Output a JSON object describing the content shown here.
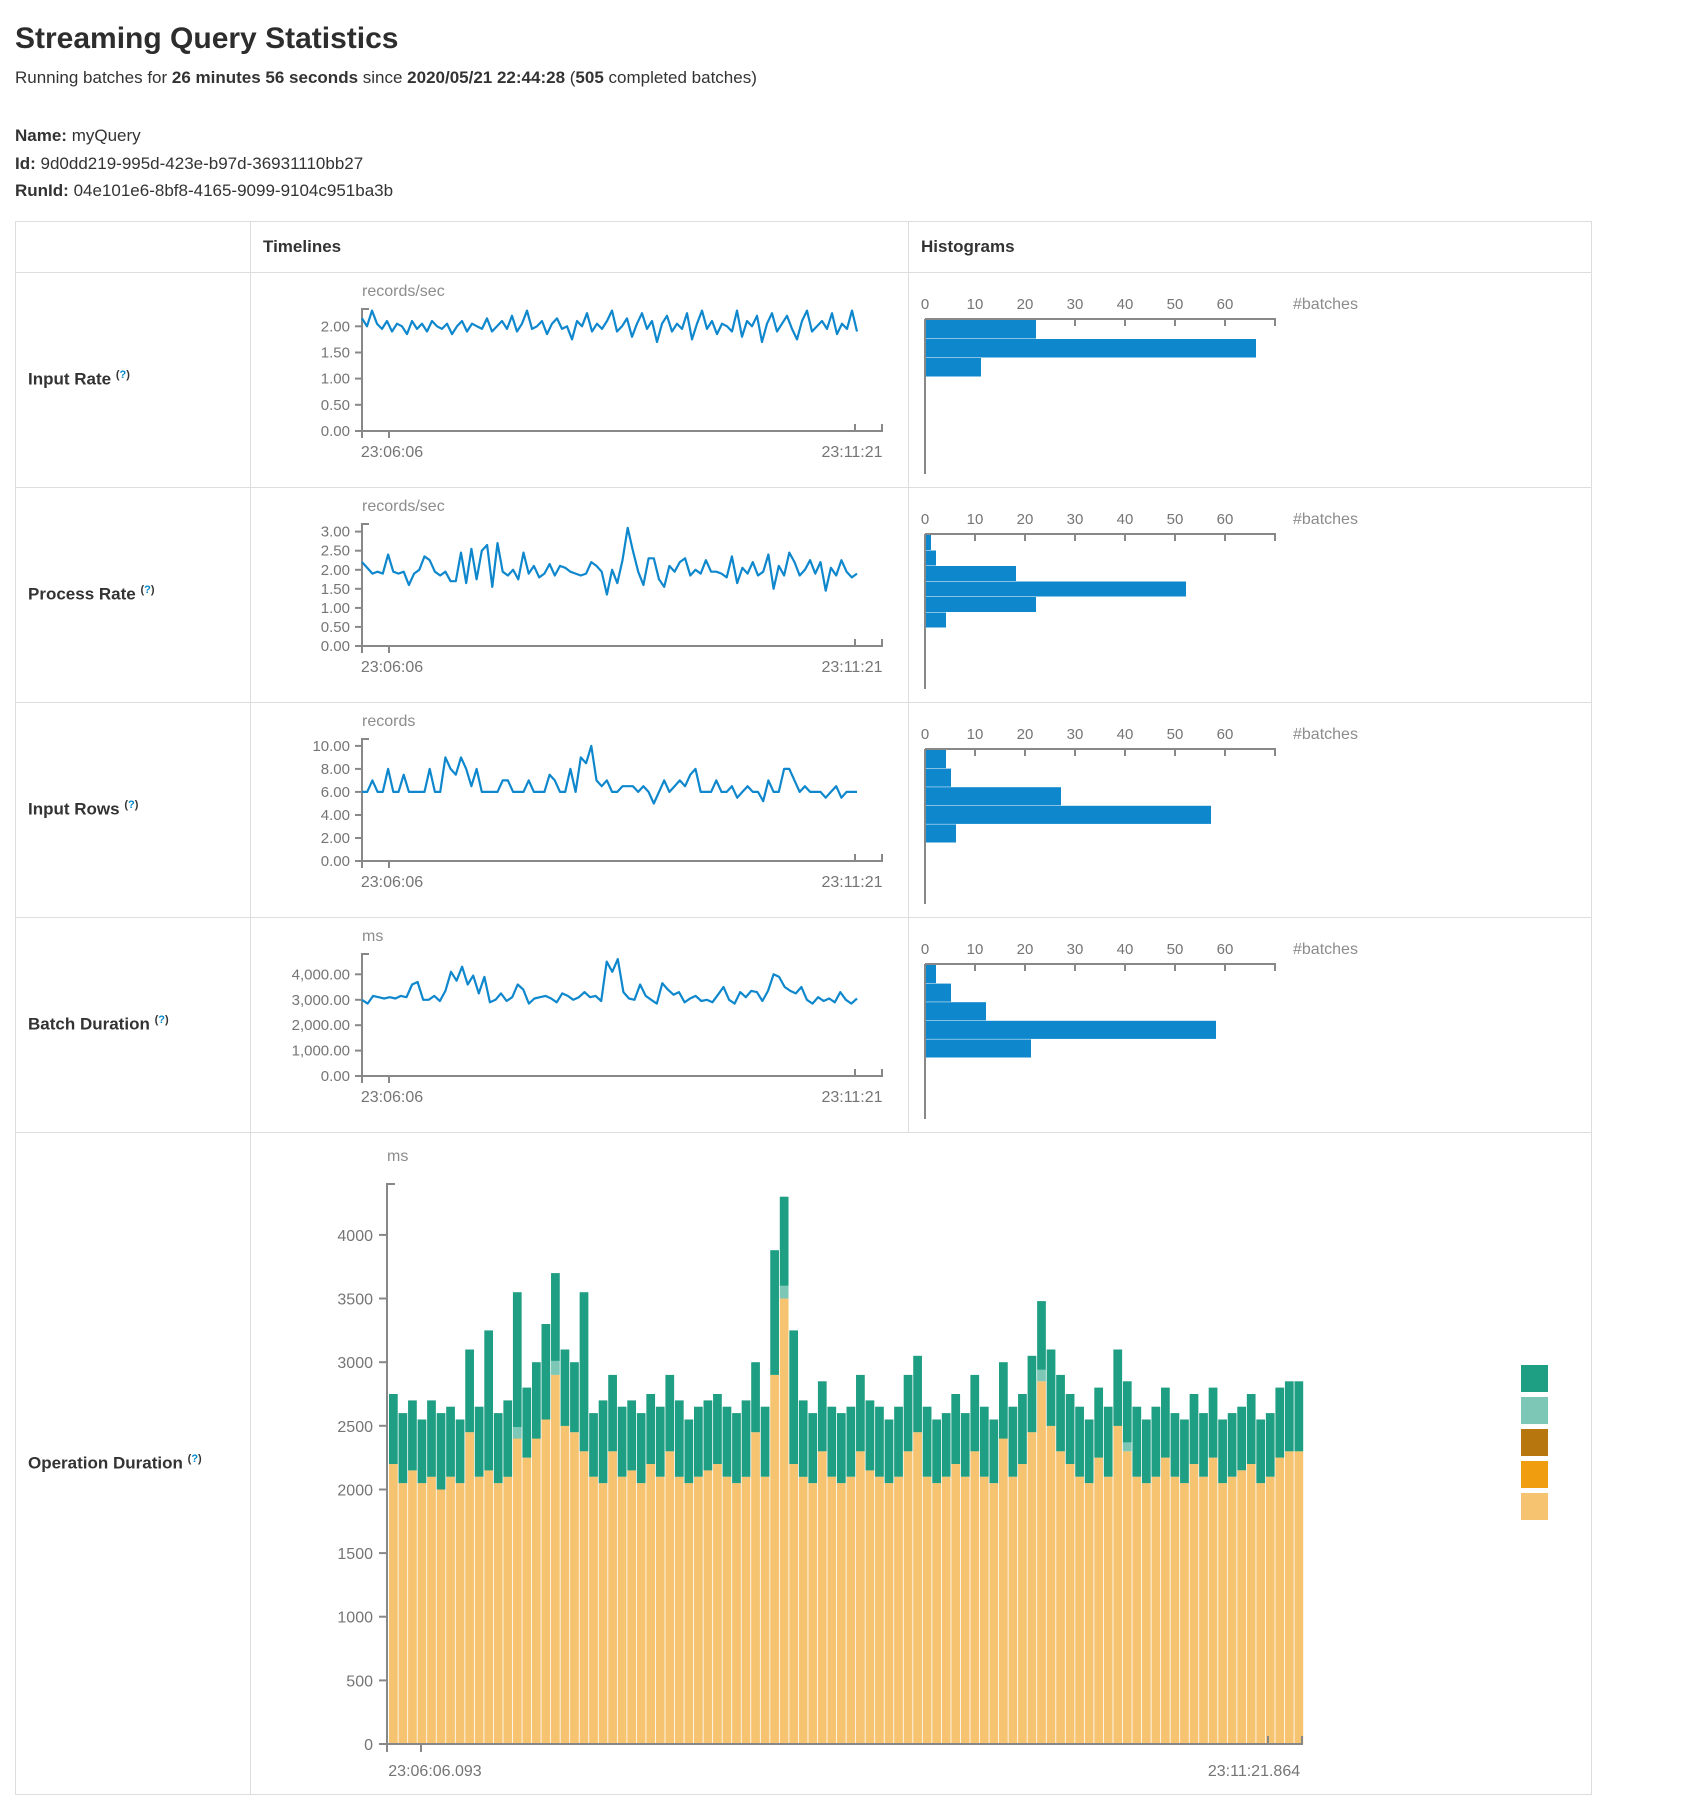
{
  "page": {
    "title": "Streaming Query Statistics",
    "subtitle": {
      "prefix": "Running batches for ",
      "duration": "26 minutes 56 seconds",
      "middle": " since ",
      "start_time": "2020/05/21 22:44:28",
      "open": " (",
      "batches": "505",
      "suffix": " completed batches)"
    },
    "name_label": "Name:",
    "name_value": "myQuery",
    "id_label": "Id:",
    "id_value": "9d0dd219-995d-423e-b97d-36931110bb27",
    "runid_label": "RunId:",
    "runid_value": "04e101e6-8bf8-4165-9099-9104c951ba3b"
  },
  "help": {
    "open": "(",
    "q": "?",
    "close": ")"
  },
  "table": {
    "headers": {
      "timelines": "Timelines",
      "histograms": "Histograms"
    },
    "rows": [
      {
        "label": "Input Rate"
      },
      {
        "label": "Process Rate"
      },
      {
        "label": "Input Rows"
      },
      {
        "label": "Batch Duration"
      },
      {
        "label": "Operation Duration"
      }
    ]
  },
  "colors": {
    "line_blue": "#0e87cd",
    "hist_blue": "#0e87cd",
    "axis_gray": "#888888",
    "tick_text": "#757575",
    "op_green": "#1e9e82",
    "op_light_teal": "#7cc7b6",
    "op_dark_ochre": "#b8770e",
    "op_orange": "#f19d10",
    "op_tan": "#f6c371"
  },
  "chart_data": [
    {
      "id": "input-rate-timeline",
      "type": "line",
      "title": "records/sec",
      "x_start_label": "23:06:06",
      "x_end_label": "23:11:21",
      "ylim": [
        0,
        2.33
      ],
      "yticks": [
        {
          "v": 0,
          "label": "0.00"
        },
        {
          "v": 0.5,
          "label": "0.50"
        },
        {
          "v": 1,
          "label": "1.00"
        },
        {
          "v": 1.5,
          "label": "1.50"
        },
        {
          "v": 2,
          "label": "2.00"
        }
      ],
      "values": [
        2.15,
        2.0,
        2.3,
        2.05,
        1.95,
        2.1,
        1.9,
        2.05,
        2.0,
        1.85,
        2.1,
        1.95,
        2.05,
        1.9,
        2.1,
        2.0,
        1.95,
        2.05,
        1.85,
        2.0,
        2.1,
        1.9,
        2.05,
        2.0,
        1.95,
        2.15,
        1.9,
        2.0,
        2.1,
        1.95,
        2.2,
        1.9,
        2.05,
        2.3,
        1.95,
        2.0,
        2.1,
        1.85,
        2.05,
        2.15,
        1.95,
        2.0,
        1.75,
        2.1,
        2.0,
        2.25,
        1.9,
        2.05,
        1.95,
        2.1,
        2.3,
        1.9,
        2.0,
        2.15,
        1.8,
        2.05,
        2.25,
        1.95,
        2.1,
        1.7,
        2.05,
        2.2,
        1.9,
        2.05,
        1.95,
        2.25,
        1.75,
        2.05,
        2.3,
        1.95,
        2.1,
        1.85,
        2.05,
        2.0,
        1.9,
        2.3,
        1.8,
        2.1,
        2.0,
        2.2,
        1.7,
        2.05,
        2.25,
        1.9,
        2.05,
        2.2,
        1.95,
        1.75,
        2.1,
        2.3,
        1.9,
        2.0,
        2.1,
        1.95,
        2.25,
        1.85,
        2.05,
        1.95,
        2.3,
        1.9
      ]
    },
    {
      "id": "input-rate-histogram",
      "type": "hbar",
      "unit": "#batches",
      "xticks": [
        0,
        10,
        20,
        30,
        40,
        50,
        60
      ],
      "xmax": 70,
      "values": [
        22,
        66,
        11
      ]
    },
    {
      "id": "process-rate-timeline",
      "type": "line",
      "title": "records/sec",
      "x_start_label": "23:06:06",
      "x_end_label": "23:11:21",
      "ylim": [
        0,
        3.2
      ],
      "yticks": [
        {
          "v": 0,
          "label": "0.00"
        },
        {
          "v": 0.5,
          "label": "0.50"
        },
        {
          "v": 1,
          "label": "1.00"
        },
        {
          "v": 1.5,
          "label": "1.50"
        },
        {
          "v": 2,
          "label": "2.00"
        },
        {
          "v": 2.5,
          "label": "2.50"
        },
        {
          "v": 3,
          "label": "3.00"
        }
      ],
      "values": [
        2.2,
        2.05,
        1.9,
        1.95,
        1.9,
        2.4,
        1.95,
        1.9,
        1.95,
        1.6,
        1.9,
        2.0,
        2.35,
        2.25,
        1.95,
        1.85,
        1.95,
        1.7,
        1.7,
        2.45,
        1.65,
        2.55,
        1.75,
        2.5,
        2.65,
        1.55,
        2.7,
        1.95,
        1.85,
        2.0,
        1.75,
        2.45,
        1.9,
        2.1,
        1.8,
        1.9,
        2.15,
        1.85,
        2.1,
        2.05,
        1.95,
        1.9,
        1.85,
        1.9,
        2.2,
        2.1,
        1.95,
        1.35,
        2.0,
        1.65,
        2.25,
        3.1,
        2.5,
        1.95,
        1.6,
        2.3,
        2.3,
        1.75,
        1.55,
        2.1,
        1.95,
        2.2,
        2.3,
        1.85,
        2.0,
        1.9,
        2.25,
        1.95,
        1.95,
        1.9,
        1.8,
        2.35,
        1.65,
        2.05,
        1.9,
        2.2,
        1.85,
        1.95,
        2.4,
        1.5,
        2.1,
        1.85,
        2.45,
        2.2,
        1.85,
        2.0,
        2.25,
        1.9,
        2.2,
        1.45,
        2.05,
        1.85,
        2.25,
        1.95,
        1.8,
        1.9
      ]
    },
    {
      "id": "process-rate-histogram",
      "type": "hbar",
      "unit": "#batches",
      "xticks": [
        0,
        10,
        20,
        30,
        40,
        50,
        60
      ],
      "xmax": 70,
      "values": [
        1,
        2,
        18,
        52,
        22,
        4
      ]
    },
    {
      "id": "input-rows-timeline",
      "type": "line",
      "title": "records",
      "x_start_label": "23:06:06",
      "x_end_label": "23:11:21",
      "ylim": [
        0,
        10.6
      ],
      "yticks": [
        {
          "v": 0,
          "label": "0.00"
        },
        {
          "v": 2,
          "label": "2.00"
        },
        {
          "v": 4,
          "label": "4.00"
        },
        {
          "v": 6,
          "label": "6.00"
        },
        {
          "v": 8,
          "label": "8.00"
        },
        {
          "v": 10,
          "label": "10.00"
        }
      ],
      "values": [
        6,
        6,
        7,
        6,
        6,
        8,
        6,
        6,
        7.5,
        6,
        6,
        6,
        6,
        8,
        6,
        6,
        9,
        8,
        7.5,
        9,
        8,
        6.5,
        8,
        6,
        6,
        6,
        6,
        7,
        7,
        6,
        6,
        6,
        7,
        6,
        6,
        6,
        7.5,
        7,
        6,
        6,
        8,
        6,
        9,
        8.5,
        10,
        7,
        6.5,
        7,
        6,
        6,
        6.5,
        6.5,
        6.5,
        6,
        6.5,
        6,
        5,
        6,
        7,
        6,
        6.5,
        7,
        6.5,
        7.5,
        8,
        6,
        6,
        6,
        7,
        6,
        6,
        6.5,
        5.5,
        6,
        6.5,
        6,
        6,
        5.2,
        7,
        6,
        6,
        8,
        8,
        7,
        6,
        6.5,
        6,
        6,
        6,
        5.5,
        6,
        6.5,
        5.5,
        6,
        6,
        6
      ]
    },
    {
      "id": "input-rows-histogram",
      "type": "hbar",
      "unit": "#batches",
      "xticks": [
        0,
        10,
        20,
        30,
        40,
        50,
        60
      ],
      "xmax": 70,
      "values": [
        4,
        5,
        27,
        57,
        6
      ]
    },
    {
      "id": "batch-duration-timeline",
      "type": "line",
      "title": "ms",
      "x_start_label": "23:06:06",
      "x_end_label": "23:11:21",
      "ylim": [
        0,
        4800
      ],
      "yticks": [
        {
          "v": 0,
          "label": "0.00"
        },
        {
          "v": 1000,
          "label": "1,000.00"
        },
        {
          "v": 2000,
          "label": "2,000.00"
        },
        {
          "v": 3000,
          "label": "3,000.00"
        },
        {
          "v": 4000,
          "label": "4,000.00"
        }
      ],
      "values": [
        3000,
        2850,
        3150,
        3100,
        3050,
        3100,
        3050,
        3150,
        3100,
        3600,
        3700,
        3000,
        3000,
        3150,
        2950,
        3350,
        4100,
        3750,
        4300,
        3600,
        3950,
        3250,
        3900,
        2900,
        3000,
        3250,
        2950,
        3100,
        3600,
        3400,
        2850,
        3050,
        3100,
        3150,
        3050,
        2900,
        3250,
        3150,
        3000,
        3100,
        3300,
        3100,
        3150,
        2950,
        4500,
        4100,
        4600,
        3300,
        3050,
        3000,
        3600,
        3150,
        3000,
        2850,
        3650,
        3400,
        3200,
        3300,
        2900,
        3050,
        3150,
        2950,
        3000,
        2900,
        3200,
        3500,
        3000,
        2850,
        3300,
        3100,
        3350,
        3300,
        2950,
        3350,
        4000,
        3900,
        3500,
        3350,
        3250,
        3500,
        3000,
        2850,
        3100,
        2950,
        3050,
        2900,
        3300,
        3000,
        2850,
        3050
      ]
    },
    {
      "id": "batch-duration-histogram",
      "type": "hbar",
      "unit": "#batches",
      "xticks": [
        0,
        10,
        20,
        30,
        40,
        50,
        60
      ],
      "xmax": 70,
      "values": [
        2,
        5,
        12,
        58,
        21
      ]
    },
    {
      "id": "operation-duration",
      "type": "stacked",
      "title": "ms",
      "x_start_label": "23:06:06.093",
      "x_end_label": "23:11:21.864",
      "ylim": [
        0,
        4400
      ],
      "yticks": [
        {
          "v": 0,
          "label": "0"
        },
        {
          "v": 500,
          "label": "500"
        },
        {
          "v": 1000,
          "label": "1000"
        },
        {
          "v": 1500,
          "label": "1500"
        },
        {
          "v": 2000,
          "label": "2000"
        },
        {
          "v": 2500,
          "label": "2500"
        },
        {
          "v": 3000,
          "label": "3000"
        },
        {
          "v": 3500,
          "label": "3500"
        },
        {
          "v": 4000,
          "label": "4000"
        }
      ],
      "legend_colors": [
        "#1e9e82",
        "#7cc7b6",
        "#b8770e",
        "#f19d10",
        "#f6c371"
      ],
      "bars": {
        "tan": [
          2200,
          2050,
          2150,
          2050,
          2100,
          2000,
          2100,
          2050,
          2450,
          2100,
          2150,
          2050,
          2100,
          2400,
          2250,
          2400,
          2550,
          2900,
          2500,
          2450,
          2300,
          2100,
          2050,
          2300,
          2100,
          2150,
          2050,
          2200,
          2100,
          2300,
          2100,
          2050,
          2100,
          2150,
          2200,
          2100,
          2050,
          2100,
          2450,
          2100,
          2900,
          3500,
          2200,
          2100,
          2050,
          2300,
          2100,
          2050,
          2100,
          2300,
          2150,
          2100,
          2050,
          2100,
          2300,
          2450,
          2100,
          2050,
          2100,
          2200,
          2100,
          2300,
          2100,
          2050,
          2400,
          2100,
          2200,
          2450,
          2850,
          2500,
          2300,
          2200,
          2100,
          2050,
          2250,
          2100,
          2500,
          2300,
          2100,
          2050,
          2100,
          2250,
          2100,
          2050,
          2200,
          2100,
          2250,
          2050,
          2100,
          2150,
          2200,
          2050,
          2100,
          2250,
          2300,
          2300
        ],
        "total": [
          2750,
          2600,
          2700,
          2550,
          2700,
          2600,
          2650,
          2550,
          3100,
          2650,
          3250,
          2600,
          2700,
          3550,
          2800,
          3000,
          3300,
          3700,
          3100,
          3000,
          3550,
          2600,
          2700,
          2900,
          2650,
          2700,
          2600,
          2750,
          2650,
          2900,
          2700,
          2550,
          2650,
          2700,
          2750,
          2650,
          2600,
          2700,
          3000,
          2650,
          3880,
          4300,
          3250,
          2700,
          2600,
          2850,
          2650,
          2600,
          2650,
          2900,
          2700,
          2650,
          2550,
          2650,
          2900,
          3050,
          2650,
          2550,
          2600,
          2750,
          2600,
          2900,
          2650,
          2550,
          3000,
          2650,
          2750,
          3050,
          3480,
          3100,
          2900,
          2750,
          2650,
          2550,
          2800,
          2650,
          3100,
          2850,
          2650,
          2550,
          2650,
          2800,
          2600,
          2550,
          2750,
          2600,
          2800,
          2550,
          2600,
          2650,
          2750,
          2550,
          2600,
          2800,
          2850,
          2850
        ],
        "teal": {
          "13": 90,
          "17": 110,
          "41": 100,
          "68": 90,
          "77": 70
        }
      }
    }
  ]
}
